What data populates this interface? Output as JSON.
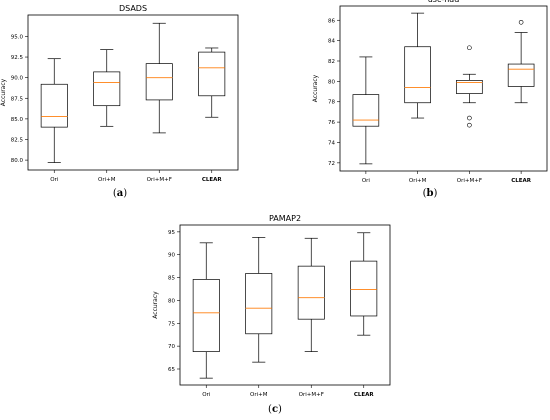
{
  "chart_data": [
    {
      "type": "box",
      "title": "DSADS",
      "panel_label": "(a)",
      "ylabel": "Accuracy",
      "ylim": [
        78.8,
        97.6
      ],
      "yticks": [
        80.0,
        82.5,
        85.0,
        87.5,
        90.0,
        92.5,
        95.0
      ],
      "ytick_labels": [
        "80.0",
        "82.5",
        "85.0",
        "87.5",
        "90.0",
        "92.5",
        "95.0"
      ],
      "categories": [
        "Ori",
        "Ori+M",
        "Ori+M+F",
        "CLEAR"
      ],
      "bold_category": "CLEAR",
      "boxes": [
        {
          "whisker_low": 79.7,
          "q1": 84.0,
          "median": 85.3,
          "q3": 89.2,
          "whisker_high": 92.3,
          "outliers": []
        },
        {
          "whisker_low": 84.1,
          "q1": 86.6,
          "median": 89.4,
          "q3": 90.7,
          "whisker_high": 93.4,
          "outliers": []
        },
        {
          "whisker_low": 83.3,
          "q1": 87.3,
          "median": 90.0,
          "q3": 91.7,
          "whisker_high": 96.6,
          "outliers": []
        },
        {
          "whisker_low": 85.2,
          "q1": 87.8,
          "median": 91.2,
          "q3": 93.1,
          "whisker_high": 93.6,
          "outliers": []
        }
      ]
    },
    {
      "type": "box",
      "title": "usc-had",
      "panel_label": "(b)",
      "ylabel": "Accuracy",
      "ylim": [
        71.2,
        87.4
      ],
      "yticks": [
        72,
        74,
        76,
        78,
        80,
        82,
        84,
        86
      ],
      "ytick_labels": [
        "72",
        "74",
        "76",
        "78",
        "80",
        "82",
        "84",
        "86"
      ],
      "categories": [
        "Ori",
        "Ori+M",
        "Ori+M+F",
        "CLEAR"
      ],
      "bold_category": "CLEAR",
      "boxes": [
        {
          "whisker_low": 71.9,
          "q1": 75.6,
          "median": 76.2,
          "q3": 78.7,
          "whisker_high": 82.4,
          "outliers": []
        },
        {
          "whisker_low": 76.4,
          "q1": 77.9,
          "median": 79.4,
          "q3": 83.4,
          "whisker_high": 86.7,
          "outliers": []
        },
        {
          "whisker_low": 77.9,
          "q1": 78.8,
          "median": 79.9,
          "q3": 80.1,
          "whisker_high": 80.7,
          "outliers": [
            83.3,
            76.4,
            75.7
          ]
        },
        {
          "whisker_low": 77.9,
          "q1": 79.5,
          "median": 81.2,
          "q3": 81.7,
          "whisker_high": 84.8,
          "outliers": [
            85.8
          ]
        }
      ]
    },
    {
      "type": "box",
      "title": "PAMAP2",
      "panel_label": "(c)",
      "ylabel": "Accuracy",
      "ylim": [
        61.5,
        96.5
      ],
      "yticks": [
        65,
        70,
        75,
        80,
        85,
        90,
        95
      ],
      "ytick_labels": [
        "65",
        "70",
        "75",
        "80",
        "85",
        "90",
        "95"
      ],
      "categories": [
        "Ori",
        "Ori+M",
        "Ori+M+F",
        "CLEAR"
      ],
      "bold_category": "CLEAR",
      "boxes": [
        {
          "whisker_low": 63.0,
          "q1": 68.8,
          "median": 77.3,
          "q3": 84.6,
          "whisker_high": 92.6,
          "outliers": []
        },
        {
          "whisker_low": 66.5,
          "q1": 72.7,
          "median": 78.3,
          "q3": 85.9,
          "whisker_high": 93.8,
          "outliers": []
        },
        {
          "whisker_low": 68.8,
          "q1": 75.9,
          "median": 80.6,
          "q3": 87.5,
          "whisker_high": 93.6,
          "outliers": []
        },
        {
          "whisker_low": 72.4,
          "q1": 76.6,
          "median": 82.4,
          "q3": 88.6,
          "whisker_high": 94.8,
          "outliers": []
        }
      ]
    }
  ]
}
